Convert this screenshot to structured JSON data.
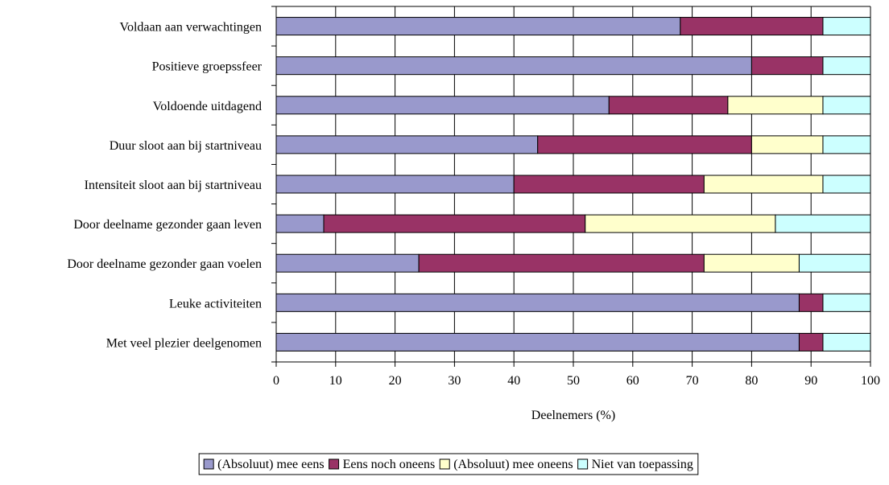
{
  "chart_data": {
    "type": "bar",
    "orientation": "horizontal",
    "stacked": true,
    "title": "",
    "xlabel": "Deelnemers (%)",
    "ylabel": "",
    "xlim": [
      0,
      100
    ],
    "xticks": [
      0,
      10,
      20,
      30,
      40,
      50,
      60,
      70,
      80,
      90,
      100
    ],
    "grid": true,
    "legend_position": "bottom",
    "categories": [
      "Voldaan aan verwachtingen",
      "Positieve groepssfeer",
      "Voldoende uitdagend",
      "Duur sloot aan bij startniveau",
      "Intensiteit sloot aan bij startniveau",
      "Door deelname gezonder gaan leven",
      "Door deelname gezonder gaan voelen",
      "Leuke activiteiten",
      "Met veel plezier deelgenomen"
    ],
    "series": [
      {
        "name": "(Absoluut) mee eens",
        "color": "#9999cc",
        "values": [
          68,
          80,
          56,
          44,
          40,
          8,
          24,
          88,
          88
        ]
      },
      {
        "name": "Eens noch oneens",
        "color": "#993366",
        "values": [
          24,
          12,
          20,
          36,
          32,
          44,
          48,
          4,
          4
        ]
      },
      {
        "name": "(Absoluut) mee oneens",
        "color": "#ffffcc",
        "values": [
          0,
          0,
          16,
          12,
          20,
          32,
          16,
          0,
          0
        ]
      },
      {
        "name": "Niet van toepassing",
        "color": "#ccffff",
        "values": [
          8,
          8,
          8,
          8,
          8,
          16,
          12,
          8,
          8
        ]
      }
    ]
  }
}
